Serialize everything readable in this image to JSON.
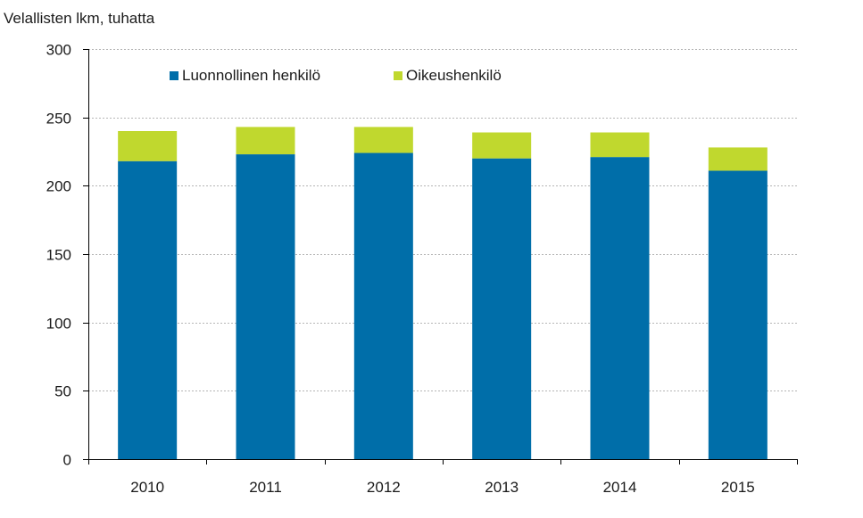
{
  "chart_data": {
    "type": "bar",
    "stacked": true,
    "ylabel": "Velallisten lkm, tuhatta",
    "categories": [
      "2010",
      "2011",
      "2012",
      "2013",
      "2014",
      "2015"
    ],
    "series": [
      {
        "name": "Luonnollinen henkilö",
        "color": "#006ea9",
        "values": [
          218,
          223,
          224,
          220,
          221,
          211
        ]
      },
      {
        "name": "Oikeushenkilö",
        "color": "#c0d82e",
        "values": [
          22,
          20,
          19,
          19,
          18,
          17
        ]
      }
    ],
    "ylim": [
      0,
      300
    ],
    "yticks": [
      "0",
      "50",
      "100",
      "150",
      "200",
      "250",
      "300"
    ],
    "grid": true,
    "legend_position": "top-left"
  }
}
